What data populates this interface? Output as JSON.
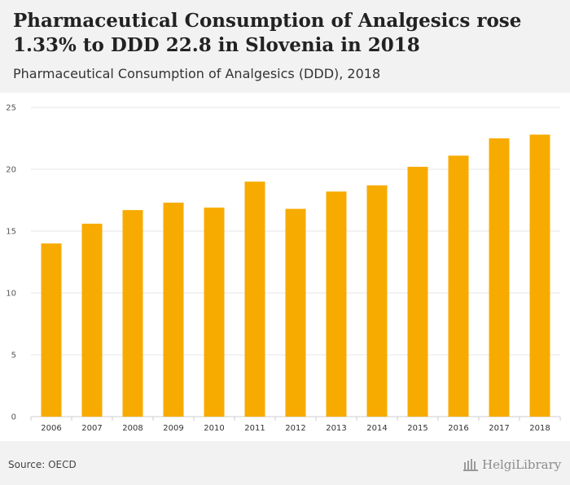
{
  "header": {
    "title": "Pharmaceutical Consumption of Analgesics rose 1.33% to DDD 22.8 in Slovenia in 2018",
    "subtitle": "Pharmaceutical Consumption of Analgesics (DDD), 2018"
  },
  "footer": {
    "source": "Source: OECD",
    "logo_text": "HelgiLibrary"
  },
  "colors": {
    "bar": "#f7ab00",
    "grid": "#e6e6e6",
    "axis": "#cccccc"
  },
  "chart_data": {
    "type": "bar",
    "categories": [
      "2006",
      "2007",
      "2008",
      "2009",
      "2010",
      "2011",
      "2012",
      "2013",
      "2014",
      "2015",
      "2016",
      "2017",
      "2018"
    ],
    "values": [
      14.0,
      15.6,
      16.7,
      17.3,
      16.9,
      19.0,
      16.8,
      18.2,
      18.7,
      20.2,
      21.1,
      22.5,
      22.8
    ],
    "ylim": [
      0,
      25
    ],
    "yticks": [
      0,
      5,
      10,
      15,
      20,
      25
    ],
    "grid": true,
    "legend": "none"
  }
}
